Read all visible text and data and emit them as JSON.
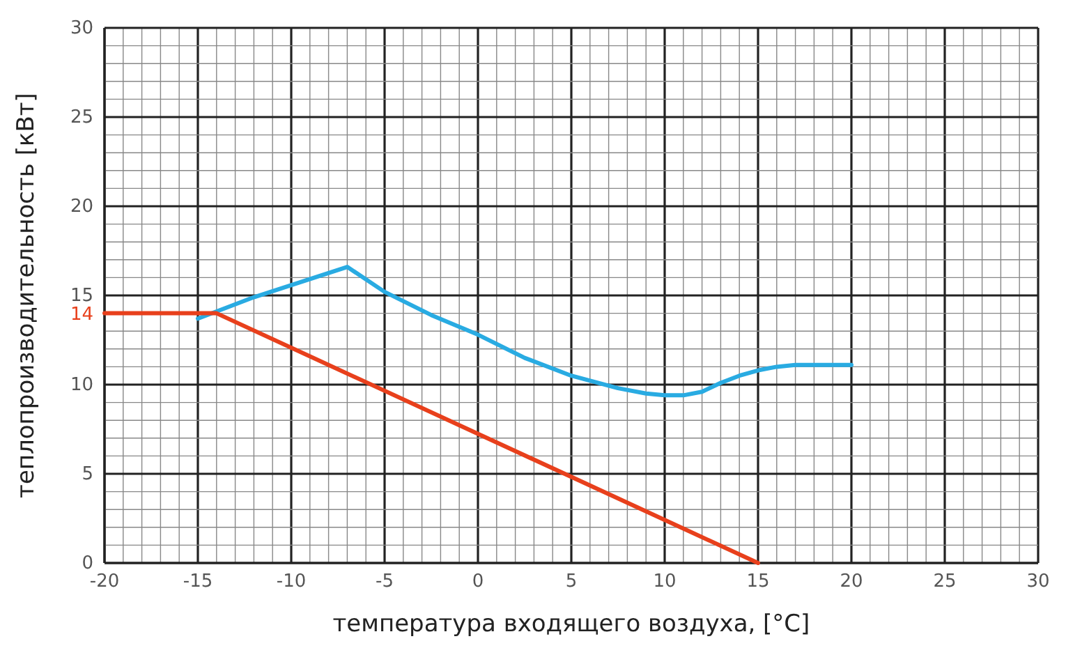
{
  "chart_data": {
    "type": "line",
    "xlabel": "температура входящего воздуха, [°C]",
    "ylabel": "теплопроизводительность [кВт]",
    "xlim": [
      -20,
      30
    ],
    "ylim": [
      0,
      30
    ],
    "xticks": [
      -20,
      -15,
      -10,
      -5,
      0,
      5,
      10,
      15,
      20,
      25,
      30
    ],
    "yticks": [
      0,
      5,
      10,
      15,
      20,
      25,
      30
    ],
    "grid": true,
    "marker": "none",
    "line_style": "solid",
    "annotations": [
      {
        "text": "14",
        "x": -20,
        "y": 14
      }
    ],
    "series": [
      {
        "color": "#29abe2",
        "x": [
          -15,
          -12,
          -7,
          -5,
          -2.5,
          0,
          2.5,
          5,
          7.5,
          9,
          10,
          11,
          12,
          13,
          14,
          15,
          16,
          17,
          20
        ],
        "values": [
          13.7,
          14.9,
          16.6,
          15.2,
          13.9,
          12.8,
          11.5,
          10.5,
          9.8,
          9.5,
          9.4,
          9.4,
          9.6,
          10.1,
          10.5,
          10.8,
          11,
          11.1,
          11.1
        ]
      },
      {
        "color": "#e8401c",
        "x": [
          -20,
          -14,
          15
        ],
        "values": [
          14,
          14,
          0
        ]
      }
    ]
  }
}
